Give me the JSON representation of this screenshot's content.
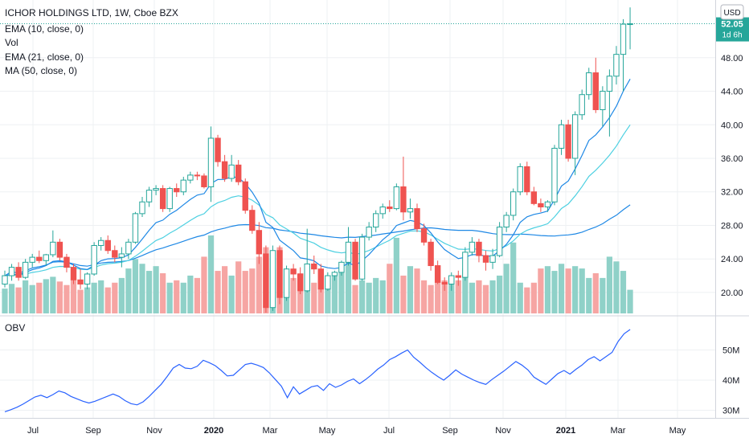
{
  "legend": {
    "title": "ICHOR HOLDINGS LTD, 1W, Cboe BZX",
    "ema10": "EMA (10, close, 0)",
    "vol": "Vol",
    "ema21": "EMA (21, close, 0)",
    "ma50": "MA (50, close, 0)"
  },
  "oscillator_label": "OBV",
  "currency_badge": "USD",
  "price_marker": {
    "value": "52.05",
    "countdown": "1d 6h"
  },
  "colors": {
    "up": "#26a69a",
    "down": "#ef5350",
    "up_volume": "#8fd1c8",
    "down_volume": "#f6a5a3",
    "ema10": "#1e88e5",
    "ema21": "#4dd0e1",
    "ma50": "#1e88e5",
    "obv": "#2962ff",
    "price_marker": "#26a69a"
  },
  "chart_data": [
    {
      "type": "candlestick",
      "title": "ICHOR HOLDINGS LTD, 1W, Cboe BZX",
      "price_axis_ticks": [
        "20.00",
        "24.00",
        "28.00",
        "32.00",
        "36.00",
        "40.00",
        "44.00",
        "48.00"
      ],
      "price_range": [
        17.5,
        54.5
      ],
      "time_axis_ticks": [
        "Jul",
        "Sep",
        "Nov",
        "2020",
        "Mar",
        "May",
        "Jul",
        "Sep",
        "Nov",
        "2021",
        "Mar",
        "May"
      ],
      "grid": true,
      "ohlc": [
        [
          21.0,
          22.6,
          20.6,
          22.0
        ],
        [
          22.0,
          23.4,
          21.4,
          23.0
        ],
        [
          23.0,
          23.6,
          21.4,
          21.8
        ],
        [
          21.8,
          24.0,
          21.6,
          23.6
        ],
        [
          23.6,
          24.6,
          23.0,
          24.2
        ],
        [
          24.2,
          25.0,
          23.5,
          23.8
        ],
        [
          23.8,
          24.6,
          23.2,
          24.5
        ],
        [
          24.5,
          27.4,
          24.2,
          26.0
        ],
        [
          26.0,
          26.4,
          23.8,
          24.2
        ],
        [
          24.2,
          24.6,
          22.4,
          23.0
        ],
        [
          23.0,
          23.4,
          21.0,
          21.5
        ],
        [
          21.5,
          22.8,
          20.4,
          21.0
        ],
        [
          21.0,
          22.4,
          20.4,
          22.2
        ],
        [
          22.2,
          26.0,
          22.0,
          25.6
        ],
        [
          25.6,
          26.6,
          25.0,
          26.2
        ],
        [
          26.2,
          26.8,
          24.6,
          25.0
        ],
        [
          25.0,
          25.6,
          23.6,
          24.2
        ],
        [
          24.2,
          25.4,
          23.0,
          24.6
        ],
        [
          24.6,
          26.4,
          24.0,
          26.0
        ],
        [
          26.0,
          29.6,
          25.8,
          29.4
        ],
        [
          29.4,
          31.4,
          29.0,
          30.8
        ],
        [
          30.8,
          32.6,
          30.2,
          32.2
        ],
        [
          32.2,
          32.8,
          31.6,
          32.4
        ],
        [
          32.4,
          32.8,
          29.6,
          30.0
        ],
        [
          30.0,
          32.6,
          29.6,
          32.4
        ],
        [
          32.4,
          33.0,
          31.4,
          32.0
        ],
        [
          32.0,
          33.8,
          31.6,
          33.4
        ],
        [
          33.4,
          34.4,
          33.0,
          34.0
        ],
        [
          34.0,
          34.4,
          33.4,
          33.9
        ],
        [
          33.9,
          34.2,
          32.4,
          32.6
        ],
        [
          32.6,
          39.8,
          30.8,
          38.4
        ],
        [
          38.4,
          38.8,
          35.0,
          35.6
        ],
        [
          35.6,
          36.4,
          33.2,
          33.6
        ],
        [
          33.6,
          36.4,
          33.2,
          35.2
        ],
        [
          35.2,
          35.8,
          32.8,
          33.2
        ],
        [
          33.2,
          33.6,
          29.4,
          29.8
        ],
        [
          29.8,
          30.4,
          27.0,
          27.4
        ],
        [
          27.4,
          28.4,
          23.4,
          24.6
        ],
        [
          24.6,
          25.6,
          17.6,
          18.2
        ],
        [
          18.2,
          25.6,
          17.8,
          25.0
        ],
        [
          25.0,
          25.6,
          18.6,
          19.4
        ],
        [
          19.4,
          23.2,
          19.0,
          22.8
        ],
        [
          22.8,
          23.4,
          21.4,
          22.2
        ],
        [
          22.2,
          23.0,
          19.8,
          20.2
        ],
        [
          20.2,
          27.6,
          20.0,
          23.4
        ],
        [
          23.4,
          24.4,
          22.2,
          22.8
        ],
        [
          22.8,
          23.4,
          20.0,
          20.4
        ],
        [
          20.4,
          22.4,
          20.2,
          22.0
        ],
        [
          22.0,
          22.6,
          21.4,
          22.4
        ],
        [
          22.4,
          23.8,
          22.0,
          23.6
        ],
        [
          23.6,
          27.8,
          23.2,
          26.0
        ],
        [
          26.0,
          26.4,
          21.4,
          21.6
        ],
        [
          21.6,
          27.0,
          21.4,
          26.6
        ],
        [
          26.6,
          28.4,
          26.2,
          27.8
        ],
        [
          27.8,
          29.8,
          27.2,
          29.4
        ],
        [
          29.4,
          30.6,
          28.8,
          30.2
        ],
        [
          30.2,
          31.0,
          29.6,
          30.0
        ],
        [
          30.0,
          33.0,
          29.8,
          32.6
        ],
        [
          32.6,
          36.2,
          28.6,
          29.6
        ],
        [
          29.6,
          31.2,
          28.8,
          30.0
        ],
        [
          30.0,
          30.6,
          27.2,
          27.6
        ],
        [
          27.6,
          28.2,
          25.6,
          26.0
        ],
        [
          26.0,
          26.4,
          22.6,
          23.2
        ],
        [
          23.2,
          23.8,
          21.0,
          21.2
        ],
        [
          21.2,
          21.8,
          20.2,
          21.0
        ],
        [
          21.0,
          22.4,
          20.2,
          22.0
        ],
        [
          22.0,
          22.6,
          20.8,
          21.8
        ],
        [
          21.8,
          25.4,
          21.4,
          24.8
        ],
        [
          24.8,
          26.6,
          24.4,
          26.0
        ],
        [
          26.0,
          26.4,
          23.6,
          24.4
        ],
        [
          24.4,
          25.0,
          22.6,
          23.6
        ],
        [
          23.6,
          25.2,
          22.8,
          24.4
        ],
        [
          24.4,
          28.4,
          24.2,
          27.8
        ],
        [
          27.8,
          29.6,
          27.2,
          29.2
        ],
        [
          29.2,
          32.4,
          28.6,
          32.0
        ],
        [
          32.0,
          35.4,
          31.6,
          35.0
        ],
        [
          35.0,
          35.6,
          31.6,
          32.0
        ],
        [
          32.0,
          32.6,
          30.4,
          30.6
        ],
        [
          30.6,
          31.2,
          29.6,
          30.2
        ],
        [
          30.2,
          31.0,
          29.6,
          30.8
        ],
        [
          30.8,
          37.6,
          30.4,
          37.2
        ],
        [
          37.2,
          40.6,
          36.4,
          40.0
        ],
        [
          40.0,
          40.6,
          35.6,
          36.0
        ],
        [
          36.0,
          41.6,
          34.0,
          41.2
        ],
        [
          41.2,
          44.2,
          40.6,
          43.6
        ],
        [
          43.6,
          46.8,
          43.0,
          46.2
        ],
        [
          46.2,
          48.0,
          41.4,
          41.8
        ],
        [
          41.8,
          44.6,
          39.8,
          44.0
        ],
        [
          44.0,
          46.6,
          38.6,
          45.8
        ],
        [
          45.8,
          49.4,
          44.8,
          48.4
        ],
        [
          48.4,
          52.6,
          44.0,
          52.0
        ],
        [
          52.0,
          54.0,
          49.0,
          52.05
        ]
      ],
      "volume": [
        2.1,
        2.5,
        2.2,
        2.8,
        2.4,
        2.6,
        2.9,
        3.1,
        2.7,
        2.4,
        2.9,
        2.0,
        2.2,
        2.6,
        2.8,
        2.2,
        2.6,
        3.0,
        3.8,
        4.6,
        4.2,
        3.6,
        4.0,
        3.4,
        2.6,
        2.8,
        2.6,
        3.2,
        3.0,
        4.8,
        6.6,
        3.6,
        4.0,
        3.2,
        4.4,
        3.6,
        3.8,
        4.8,
        5.6,
        3.8,
        5.6,
        3.2,
        3.0,
        3.4,
        4.2,
        2.6,
        3.6,
        3.0,
        3.2,
        3.8,
        4.8,
        2.4,
        2.8,
        2.6,
        3.0,
        2.8,
        4.2,
        6.4,
        3.2,
        4.0,
        3.8,
        2.8,
        2.4,
        2.8,
        2.8,
        3.0,
        2.8,
        3.8,
        2.6,
        2.8,
        2.4,
        2.8,
        3.2,
        4.2,
        6.0,
        2.6,
        2.2,
        2.6,
        3.8,
        4.0,
        3.6,
        4.2,
        3.8,
        4.0,
        3.8,
        3.0,
        3.4,
        3.0,
        4.8,
        4.4,
        3.6,
        2.0
      ]
    },
    {
      "type": "line",
      "name": "OBV",
      "y_axis_ticks": [
        "50M",
        "40M",
        "30M"
      ],
      "y_range": [
        28,
        60
      ],
      "unit": "M",
      "values": [
        29.5,
        30.2,
        31.0,
        32.0,
        33.2,
        34.4,
        35.0,
        34.2,
        35.2,
        36.4,
        35.8,
        34.6,
        33.8,
        33.0,
        32.4,
        33.0,
        33.8,
        34.6,
        35.4,
        34.6,
        33.2,
        32.2,
        31.8,
        32.8,
        34.6,
        36.6,
        38.6,
        41.2,
        44.0,
        45.2,
        44.0,
        43.8,
        44.6,
        46.6,
        45.8,
        44.8,
        43.2,
        41.4,
        41.6,
        43.4,
        45.2,
        45.6,
        45.0,
        44.2,
        42.4,
        40.2,
        38.0,
        34.2,
        37.8,
        35.4,
        36.6,
        37.8,
        38.2,
        36.6,
        38.8,
        37.6,
        38.4,
        39.6,
        40.4,
        38.8,
        40.2,
        41.8,
        43.6,
        45.0,
        46.8,
        47.8,
        49.0,
        50.0,
        47.6,
        46.0,
        44.2,
        42.6,
        41.2,
        40.0,
        41.6,
        43.4,
        42.0,
        41.0,
        40.0,
        39.2,
        38.6,
        40.2,
        41.6,
        43.0,
        44.6,
        46.2,
        45.0,
        43.4,
        41.0,
        39.8,
        38.6,
        40.4,
        42.2,
        43.2,
        42.0,
        43.6,
        45.0,
        46.8,
        47.8,
        46.4,
        47.8,
        49.2,
        52.8,
        55.4,
        56.8
      ]
    }
  ]
}
